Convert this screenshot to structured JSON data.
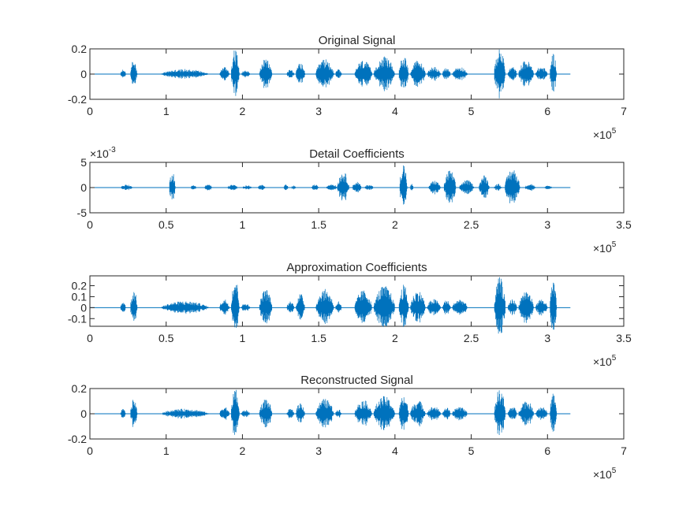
{
  "figure": {
    "background": "#ffffff",
    "axes_color": "#262626",
    "series_color": "#0072bd"
  },
  "chart_data": [
    {
      "type": "line",
      "title": "Original Signal",
      "xlim": [
        0,
        700000
      ],
      "ylim": [
        -0.2,
        0.2
      ],
      "x_ticks": [
        0,
        100000,
        200000,
        300000,
        400000,
        500000,
        600000,
        700000
      ],
      "x_tick_labels": [
        "0",
        "1",
        "2",
        "3",
        "4",
        "5",
        "6",
        "7"
      ],
      "y_ticks": [
        -0.2,
        0,
        0.2
      ],
      "y_tick_labels": [
        "-0.2",
        "0",
        "0.2"
      ],
      "x_multiplier": {
        "base": "×10",
        "exponent": "5"
      },
      "y_multiplier": null,
      "grid": false,
      "series": [
        {
          "x_end": 630000,
          "bursts": [
            {
              "x": [
                40000,
                47000
              ],
              "amp": 0.04
            },
            {
              "x": [
                53000,
                62000
              ],
              "amp": 0.12
            },
            {
              "x": [
                93000,
                156000
              ],
              "amp": 0.04
            },
            {
              "x": [
                170000,
                183000
              ],
              "amp": 0.06
            },
            {
              "x": [
                185000,
                196000
              ],
              "amp": 0.2
            },
            {
              "x": [
                198000,
                210000
              ],
              "amp": 0.03
            },
            {
              "x": [
                222000,
                239000
              ],
              "amp": 0.12
            },
            {
              "x": [
                258000,
                268000
              ],
              "amp": 0.04
            },
            {
              "x": [
                270000,
                282000
              ],
              "amp": 0.09
            },
            {
              "x": [
                296000,
                320000
              ],
              "amp": 0.12
            },
            {
              "x": [
                322000,
                330000
              ],
              "amp": 0.04
            },
            {
              "x": [
                347000,
                370000
              ],
              "amp": 0.11
            },
            {
              "x": [
                372000,
                400000
              ],
              "amp": 0.14
            },
            {
              "x": [
                405000,
                418000
              ],
              "amp": 0.15
            },
            {
              "x": [
                420000,
                440000
              ],
              "amp": 0.11
            },
            {
              "x": [
                442000,
                460000
              ],
              "amp": 0.06
            },
            {
              "x": [
                462000,
                473000
              ],
              "amp": 0.05
            },
            {
              "x": [
                475000,
                495000
              ],
              "amp": 0.06
            },
            {
              "x": [
                530000,
                545000
              ],
              "amp": 0.2
            },
            {
              "x": [
                548000,
                560000
              ],
              "amp": 0.06
            },
            {
              "x": [
                562000,
                582000
              ],
              "amp": 0.11
            },
            {
              "x": [
                584000,
                600000
              ],
              "amp": 0.06
            },
            {
              "x": [
                603000,
                612000
              ],
              "amp": 0.17
            }
          ]
        }
      ]
    },
    {
      "type": "line",
      "title": "Detail Coefficients",
      "xlim": [
        0,
        350000
      ],
      "ylim": [
        -0.005,
        0.005
      ],
      "x_ticks": [
        0,
        50000,
        100000,
        150000,
        200000,
        250000,
        300000,
        350000
      ],
      "x_tick_labels": [
        "0",
        "0.5",
        "1",
        "1.5",
        "2",
        "2.5",
        "3",
        "3.5"
      ],
      "y_ticks": [
        -0.005,
        0,
        0.005
      ],
      "y_tick_labels": [
        "-5",
        "0",
        "5"
      ],
      "x_multiplier": {
        "base": "×10",
        "exponent": "5"
      },
      "y_multiplier": {
        "base": "×10",
        "exponent": "-3"
      },
      "grid": false,
      "series": [
        {
          "x_end": 315000,
          "bursts": [
            {
              "x": [
                20000,
                28000
              ],
              "amp": 0.0006
            },
            {
              "x": [
                52000,
                56000
              ],
              "amp": 0.0035
            },
            {
              "x": [
                66000,
                70000
              ],
              "amp": 0.0005
            },
            {
              "x": [
                75000,
                80000
              ],
              "amp": 0.0007
            },
            {
              "x": [
                90000,
                97000
              ],
              "amp": 0.0006
            },
            {
              "x": [
                100000,
                106000
              ],
              "amp": 0.0005
            },
            {
              "x": [
                110000,
                115000
              ],
              "amp": 0.0006
            },
            {
              "x": [
                127000,
                130000
              ],
              "amp": 0.0006
            },
            {
              "x": [
                132000,
                135000
              ],
              "amp": 0.0004
            },
            {
              "x": [
                145000,
                150000
              ],
              "amp": 0.0006
            },
            {
              "x": [
                155000,
                162000
              ],
              "amp": 0.0008
            },
            {
              "x": [
                162000,
                170000
              ],
              "amp": 0.0032
            },
            {
              "x": [
                172000,
                178000
              ],
              "amp": 0.0012
            },
            {
              "x": [
                180000,
                186000
              ],
              "amp": 0.0006
            },
            {
              "x": [
                203000,
                208000
              ],
              "amp": 0.005
            },
            {
              "x": [
                210000,
                212000
              ],
              "amp": 0.0008
            },
            {
              "x": [
                222000,
                230000
              ],
              "amp": 0.0014
            },
            {
              "x": [
                232000,
                240000
              ],
              "amp": 0.0035
            },
            {
              "x": [
                242000,
                252000
              ],
              "amp": 0.0015
            },
            {
              "x": [
                255000,
                262000
              ],
              "amp": 0.0025
            },
            {
              "x": [
                265000,
                270000
              ],
              "amp": 0.0008
            },
            {
              "x": [
                272000,
                282000
              ],
              "amp": 0.0038
            },
            {
              "x": [
                285000,
                292000
              ],
              "amp": 0.0008
            },
            {
              "x": [
                298000,
                303000
              ],
              "amp": 0.0004
            }
          ]
        }
      ]
    },
    {
      "type": "line",
      "title": "Approximation Coefficients",
      "xlim": [
        0,
        350000
      ],
      "ylim": [
        -0.17,
        0.29
      ],
      "x_ticks": [
        0,
        50000,
        100000,
        150000,
        200000,
        250000,
        300000,
        350000
      ],
      "x_tick_labels": [
        "0",
        "0.5",
        "1",
        "1.5",
        "2",
        "2.5",
        "3",
        "3.5"
      ],
      "y_ticks": [
        -0.1,
        0,
        0.1,
        0.2
      ],
      "y_tick_labels": [
        "-0.1",
        "0",
        "0.1",
        "0.2"
      ],
      "x_multiplier": {
        "base": "×10",
        "exponent": "5"
      },
      "y_multiplier": null,
      "grid": false,
      "series": [
        {
          "x_end": 315000,
          "bursts": [
            {
              "x": [
                20000,
                23500
              ],
              "amp": 0.06
            },
            {
              "x": [
                26500,
                31000
              ],
              "amp": 0.17
            },
            {
              "x": [
                46500,
                78000
              ],
              "amp": 0.06
            },
            {
              "x": [
                85000,
                91500
              ],
              "amp": 0.08
            },
            {
              "x": [
                92500,
                98000
              ],
              "amp": 0.28
            },
            {
              "x": [
                99000,
                105000
              ],
              "amp": 0.04
            },
            {
              "x": [
                111000,
                119500
              ],
              "amp": 0.17
            },
            {
              "x": [
                129000,
                134000
              ],
              "amp": 0.06
            },
            {
              "x": [
                135000,
                141000
              ],
              "amp": 0.13
            },
            {
              "x": [
                148000,
                160000
              ],
              "amp": 0.17
            },
            {
              "x": [
                161000,
                165000
              ],
              "amp": 0.06
            },
            {
              "x": [
                173500,
                185000
              ],
              "amp": 0.16
            },
            {
              "x": [
                186000,
                200000
              ],
              "amp": 0.2
            },
            {
              "x": [
                202500,
                209000
              ],
              "amp": 0.21
            },
            {
              "x": [
                210000,
                220000
              ],
              "amp": 0.16
            },
            {
              "x": [
                221000,
                230000
              ],
              "amp": 0.08
            },
            {
              "x": [
                231000,
                236500
              ],
              "amp": 0.07
            },
            {
              "x": [
                237500,
                247500
              ],
              "amp": 0.08
            },
            {
              "x": [
                265000,
                272500
              ],
              "amp": 0.28
            },
            {
              "x": [
                274000,
                280000
              ],
              "amp": 0.08
            },
            {
              "x": [
                281000,
                291000
              ],
              "amp": 0.16
            },
            {
              "x": [
                292000,
                300000
              ],
              "amp": 0.08
            },
            {
              "x": [
                301500,
                306000
              ],
              "amp": 0.24
            }
          ]
        }
      ]
    },
    {
      "type": "line",
      "title": "Reconstructed Signal",
      "xlim": [
        0,
        700000
      ],
      "ylim": [
        -0.2,
        0.2
      ],
      "x_ticks": [
        0,
        100000,
        200000,
        300000,
        400000,
        500000,
        600000,
        700000
      ],
      "x_tick_labels": [
        "0",
        "1",
        "2",
        "3",
        "4",
        "5",
        "6",
        "7"
      ],
      "y_ticks": [
        -0.2,
        0,
        0.2
      ],
      "y_tick_labels": [
        "-0.2",
        "0",
        "0.2"
      ],
      "x_multiplier": {
        "base": "×10",
        "exponent": "5"
      },
      "y_multiplier": null,
      "grid": false,
      "series": [
        {
          "x_end": 630000,
          "bursts": [
            {
              "x": [
                40000,
                47000
              ],
              "amp": 0.04
            },
            {
              "x": [
                53000,
                62000
              ],
              "amp": 0.12
            },
            {
              "x": [
                93000,
                156000
              ],
              "amp": 0.04
            },
            {
              "x": [
                170000,
                183000
              ],
              "amp": 0.06
            },
            {
              "x": [
                185000,
                196000
              ],
              "amp": 0.2
            },
            {
              "x": [
                198000,
                210000
              ],
              "amp": 0.03
            },
            {
              "x": [
                222000,
                239000
              ],
              "amp": 0.12
            },
            {
              "x": [
                258000,
                268000
              ],
              "amp": 0.04
            },
            {
              "x": [
                270000,
                282000
              ],
              "amp": 0.09
            },
            {
              "x": [
                296000,
                320000
              ],
              "amp": 0.12
            },
            {
              "x": [
                322000,
                330000
              ],
              "amp": 0.04
            },
            {
              "x": [
                347000,
                370000
              ],
              "amp": 0.11
            },
            {
              "x": [
                372000,
                400000
              ],
              "amp": 0.14
            },
            {
              "x": [
                405000,
                418000
              ],
              "amp": 0.15
            },
            {
              "x": [
                420000,
                440000
              ],
              "amp": 0.11
            },
            {
              "x": [
                442000,
                460000
              ],
              "amp": 0.06
            },
            {
              "x": [
                462000,
                473000
              ],
              "amp": 0.05
            },
            {
              "x": [
                475000,
                495000
              ],
              "amp": 0.06
            },
            {
              "x": [
                530000,
                545000
              ],
              "amp": 0.2
            },
            {
              "x": [
                548000,
                560000
              ],
              "amp": 0.06
            },
            {
              "x": [
                562000,
                582000
              ],
              "amp": 0.11
            },
            {
              "x": [
                584000,
                600000
              ],
              "amp": 0.06
            },
            {
              "x": [
                603000,
                612000
              ],
              "amp": 0.17
            }
          ]
        }
      ]
    }
  ]
}
